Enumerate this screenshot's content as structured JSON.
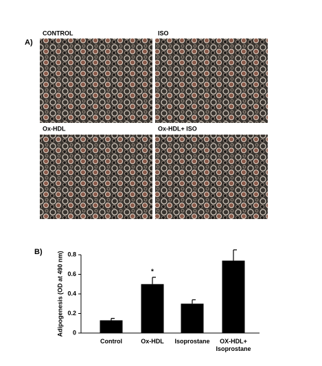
{
  "panel_a": {
    "label": "A)",
    "images": [
      {
        "label": "CONTROL"
      },
      {
        "label": "ISO"
      },
      {
        "label": "Ox-HDL"
      },
      {
        "label": "Ox-HDL+ ISO"
      }
    ]
  },
  "chart_data": {
    "type": "bar",
    "panel_label": "B)",
    "ylabel": "Adipogenesis (OD at 490 nm)",
    "categories": [
      "Control",
      "Ox-HDL",
      "Isoprostane",
      "OX-HDL+ Isoprostane"
    ],
    "values": [
      0.13,
      0.5,
      0.3,
      0.74
    ],
    "errors": [
      0.02,
      0.07,
      0.04,
      0.11
    ],
    "color": "#000000",
    "ylim": [
      0,
      0.8
    ],
    "yticks": [
      0,
      0.2,
      0.4,
      0.6,
      0.8
    ],
    "annotations": [
      {
        "text": "*",
        "category": 1
      }
    ]
  }
}
